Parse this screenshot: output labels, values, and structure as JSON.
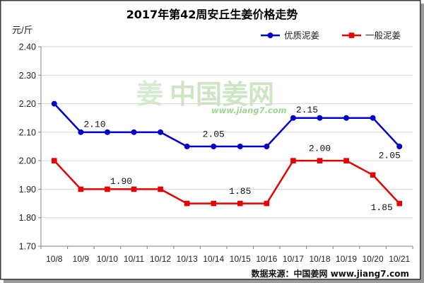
{
  "chart_data": {
    "type": "line",
    "title": "2017年第42周安丘生姜价格走势",
    "ylabel": "元/斤",
    "categories": [
      "10/8",
      "10/9",
      "10/10",
      "10/11",
      "10/12",
      "10/13",
      "10/14",
      "10/15",
      "10/16",
      "10/17",
      "10/18",
      "10/19",
      "10/20",
      "10/21"
    ],
    "ylim": [
      1.7,
      2.4
    ],
    "yticks": [
      "1.70",
      "1.80",
      "1.90",
      "2.00",
      "2.10",
      "2.20",
      "2.30",
      "2.40"
    ],
    "grid": true,
    "legend_position": "top-right",
    "series": [
      {
        "name": "优质泥姜",
        "color": "#0000cc",
        "marker": "circle",
        "values": [
          2.2,
          2.1,
          2.1,
          2.1,
          2.1,
          2.05,
          2.05,
          2.05,
          2.05,
          2.15,
          2.15,
          2.15,
          2.15,
          2.05
        ]
      },
      {
        "name": "一般泥姜",
        "color": "#e60000",
        "marker": "square",
        "values": [
          2.0,
          1.9,
          1.9,
          1.9,
          1.9,
          1.85,
          1.85,
          1.85,
          1.85,
          2.0,
          2.0,
          2.0,
          1.95,
          1.85
        ]
      }
    ],
    "data_labels": [
      {
        "series": "优质泥姜",
        "x": "10/10",
        "text": "2.10",
        "position": "above-left"
      },
      {
        "series": "优质泥姜",
        "x": "10/14",
        "text": "2.05",
        "position": "above"
      },
      {
        "series": "优质泥姜",
        "x": "10/18",
        "text": "2.15",
        "position": "above-left"
      },
      {
        "series": "优质泥姜",
        "x": "10/21",
        "text": "2.05",
        "position": "below-left"
      },
      {
        "series": "一般泥姜",
        "x": "10/11",
        "text": "1.90",
        "position": "above-left"
      },
      {
        "series": "一般泥姜",
        "x": "10/15",
        "text": "1.85",
        "position": "above"
      },
      {
        "series": "一般泥姜",
        "x": "10/18",
        "text": "2.00",
        "position": "above"
      },
      {
        "series": "一般泥姜",
        "x": "10/21",
        "text": "1.85",
        "position": "left"
      }
    ]
  },
  "source": "数据来源：中国姜网 www.jiang7.com",
  "watermark": {
    "logo": "姜",
    "name": "中国姜网",
    "url": "www.jiang7.com"
  }
}
